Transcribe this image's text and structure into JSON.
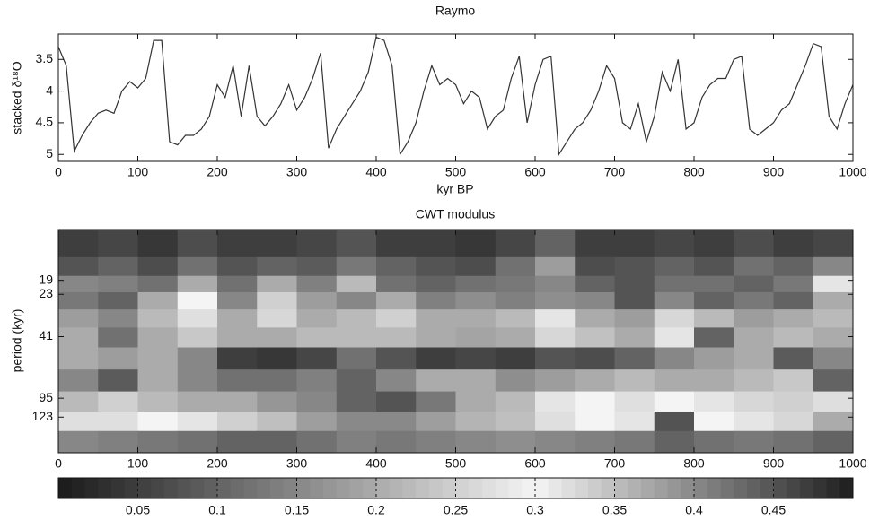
{
  "chart_data": [
    {
      "type": "line",
      "title": "Raymo",
      "xlabel": "kyr BP",
      "ylabel": "stacked δ¹⁸O",
      "x": [
        0,
        10,
        20,
        30,
        40,
        50,
        60,
        70,
        80,
        90,
        100,
        110,
        120,
        130,
        140,
        150,
        160,
        170,
        180,
        190,
        200,
        210,
        220,
        230,
        240,
        250,
        260,
        270,
        280,
        290,
        300,
        310,
        320,
        330,
        340,
        350,
        360,
        370,
        380,
        390,
        400,
        410,
        420,
        430,
        440,
        450,
        460,
        470,
        480,
        490,
        500,
        510,
        520,
        530,
        540,
        550,
        560,
        570,
        580,
        590,
        600,
        610,
        620,
        630,
        640,
        650,
        660,
        670,
        680,
        690,
        700,
        710,
        720,
        730,
        740,
        750,
        760,
        770,
        780,
        790,
        800,
        810,
        820,
        830,
        840,
        850,
        860,
        870,
        880,
        890,
        900,
        910,
        920,
        930,
        940,
        950,
        960,
        970,
        980,
        990,
        1000
      ],
      "series": [
        {
          "color": "#333333",
          "values": [
            3.3,
            3.6,
            4.95,
            4.7,
            4.5,
            4.35,
            4.3,
            4.35,
            4.0,
            3.85,
            3.95,
            3.8,
            3.2,
            3.2,
            4.8,
            4.85,
            4.7,
            4.7,
            4.6,
            4.4,
            3.9,
            4.1,
            3.6,
            4.4,
            3.6,
            4.4,
            4.55,
            4.4,
            4.2,
            3.9,
            4.3,
            4.1,
            3.8,
            3.4,
            4.9,
            4.6,
            4.4,
            4.2,
            4.0,
            3.7,
            3.15,
            3.2,
            3.6,
            5.0,
            4.8,
            4.5,
            4.0,
            3.6,
            3.9,
            3.8,
            3.9,
            4.2,
            4.0,
            4.1,
            4.6,
            4.4,
            4.3,
            3.8,
            3.45,
            4.5,
            3.9,
            3.5,
            3.45,
            5.0,
            4.8,
            4.6,
            4.5,
            4.3,
            4.0,
            3.6,
            3.8,
            4.5,
            4.6,
            4.2,
            4.8,
            4.4,
            3.7,
            4.0,
            3.5,
            4.6,
            4.5,
            4.1,
            3.9,
            3.8,
            3.8,
            3.5,
            3.45,
            4.6,
            4.7,
            4.6,
            4.5,
            4.3,
            4.2,
            3.9,
            3.6,
            3.25,
            3.3,
            4.4,
            4.6,
            4.2,
            3.9
          ]
        }
      ],
      "xlim": [
        0,
        1000
      ],
      "xticks": [
        0,
        100,
        200,
        300,
        400,
        500,
        600,
        700,
        800,
        900,
        1000
      ],
      "ylim": [
        5.11,
        3.1
      ],
      "yticks": [
        3.5,
        4,
        4.5,
        5
      ]
    },
    {
      "type": "heatmap",
      "title": "CWT modulus",
      "ylabel": "period (kyr)",
      "yscale": "log",
      "x": [
        25,
        75,
        125,
        175,
        225,
        275,
        325,
        375,
        425,
        475,
        525,
        575,
        625,
        675,
        725,
        775,
        825,
        875,
        925,
        975
      ],
      "y": [
        12,
        16,
        20,
        25,
        32,
        41,
        55,
        75,
        100,
        130,
        170
      ],
      "z": [
        [
          0.05,
          0.06,
          0.04,
          0.07,
          0.05,
          0.05,
          0.06,
          0.08,
          0.05,
          0.05,
          0.04,
          0.06,
          0.1,
          0.05,
          0.05,
          0.06,
          0.05,
          0.07,
          0.05,
          0.06
        ],
        [
          0.08,
          0.1,
          0.07,
          0.12,
          0.08,
          0.1,
          0.09,
          0.13,
          0.1,
          0.08,
          0.07,
          0.12,
          0.18,
          0.07,
          0.08,
          0.1,
          0.08,
          0.12,
          0.1,
          0.15
        ],
        [
          0.15,
          0.14,
          0.12,
          0.2,
          0.12,
          0.2,
          0.14,
          0.22,
          0.12,
          0.1,
          0.12,
          0.13,
          0.15,
          0.1,
          0.08,
          0.12,
          0.12,
          0.1,
          0.13,
          0.28
        ],
        [
          0.13,
          0.1,
          0.2,
          0.3,
          0.15,
          0.25,
          0.18,
          0.15,
          0.2,
          0.14,
          0.16,
          0.14,
          0.16,
          0.15,
          0.08,
          0.15,
          0.1,
          0.13,
          0.1,
          0.2
        ],
        [
          0.18,
          0.15,
          0.22,
          0.32,
          0.2,
          0.26,
          0.2,
          0.22,
          0.25,
          0.2,
          0.2,
          0.22,
          0.28,
          0.2,
          0.18,
          0.26,
          0.22,
          0.18,
          0.2,
          0.22
        ],
        [
          0.2,
          0.12,
          0.2,
          0.24,
          0.2,
          0.2,
          0.22,
          0.22,
          0.22,
          0.2,
          0.19,
          0.2,
          0.26,
          0.23,
          0.2,
          0.28,
          0.1,
          0.2,
          0.22,
          0.2
        ],
        [
          0.2,
          0.18,
          0.2,
          0.15,
          0.05,
          0.04,
          0.06,
          0.12,
          0.08,
          0.05,
          0.06,
          0.05,
          0.08,
          0.07,
          0.1,
          0.15,
          0.18,
          0.2,
          0.09,
          0.15
        ],
        [
          0.15,
          0.09,
          0.2,
          0.15,
          0.12,
          0.12,
          0.14,
          0.1,
          0.15,
          0.2,
          0.2,
          0.16,
          0.18,
          0.2,
          0.22,
          0.2,
          0.2,
          0.22,
          0.24,
          0.1
        ],
        [
          0.22,
          0.25,
          0.22,
          0.2,
          0.2,
          0.17,
          0.15,
          0.1,
          0.08,
          0.13,
          0.2,
          0.22,
          0.28,
          0.3,
          0.32,
          0.3,
          0.28,
          0.26,
          0.25,
          0.27
        ],
        [
          0.32,
          0.32,
          0.3,
          0.28,
          0.25,
          0.35,
          0.38,
          0.4,
          0.4,
          0.38,
          0.36,
          0.35,
          0.32,
          0.3,
          0.28,
          0.45,
          0.3,
          0.28,
          0.26,
          0.2
        ],
        [
          0.15,
          0.14,
          0.13,
          0.12,
          0.1,
          0.1,
          0.12,
          0.14,
          0.13,
          0.14,
          0.15,
          0.16,
          0.15,
          0.14,
          0.13,
          0.1,
          0.12,
          0.13,
          0.12,
          0.1
        ]
      ],
      "xlim": [
        0,
        1000
      ],
      "xticks": [
        0,
        100,
        200,
        300,
        400,
        500,
        600,
        700,
        800,
        900,
        1000
      ],
      "ylim": [
        200,
        9.5
      ],
      "yticks": [
        19,
        23,
        41,
        95,
        123
      ],
      "colorbar": {
        "clim": [
          0,
          0.5
        ],
        "ticks": [
          0.05,
          0.1,
          0.15,
          0.2,
          0.25,
          0.3,
          0.35,
          0.4,
          0.45
        ],
        "colormap": [
          {
            "value": 0,
            "color": "#1a1a1a"
          },
          {
            "value": 0.3,
            "color": "#f4f4f4"
          },
          {
            "value": 0.5,
            "color": "#1e1e1e"
          }
        ]
      }
    }
  ]
}
